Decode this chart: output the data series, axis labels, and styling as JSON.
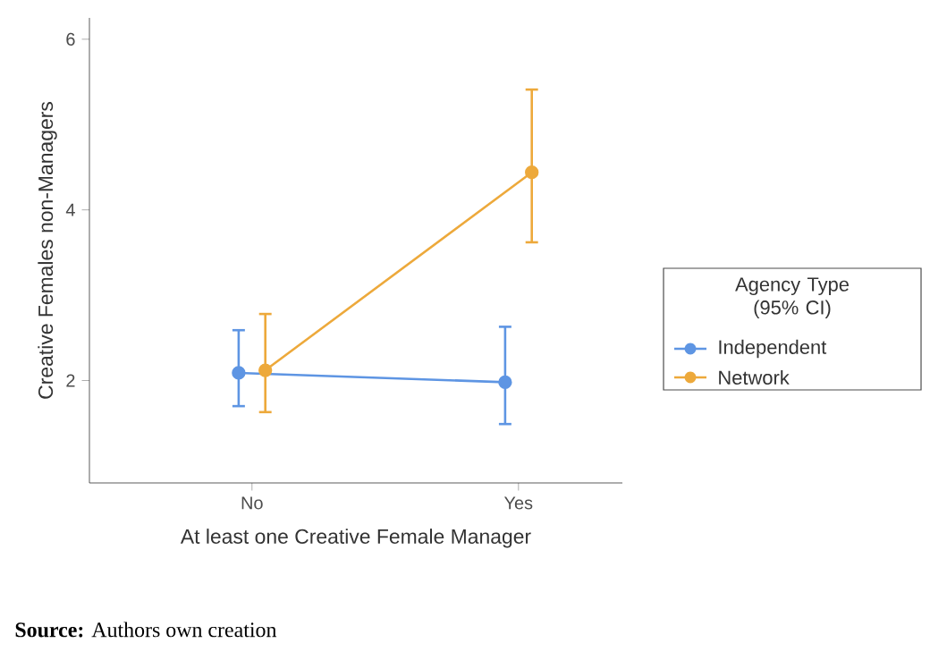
{
  "chart_data": {
    "type": "line",
    "xlabel": "At least one Creative Female Manager",
    "ylabel": "Creative Females non-Managers",
    "legend_title": "Agency Type (95% CI)",
    "categories": [
      "No",
      "Yes"
    ],
    "series": [
      {
        "name": "Independent",
        "color": "#5e95e3",
        "values": [
          2.09,
          1.98
        ],
        "errors": [
          [
            1.7,
            2.59
          ],
          [
            1.49,
            2.63
          ]
        ]
      },
      {
        "name": "Network",
        "color": "#eda93b",
        "values": [
          2.12,
          4.44
        ],
        "errors": [
          [
            1.63,
            2.78
          ],
          [
            3.62,
            5.41
          ]
        ]
      }
    ],
    "ylim": [
      0.8,
      6.25
    ],
    "yticks": [
      2,
      4,
      6
    ],
    "grid": false,
    "legend": "right",
    "marker": "circle",
    "line_style": "solid",
    "annotations": [
      "**Source:** Authors own creation"
    ]
  }
}
